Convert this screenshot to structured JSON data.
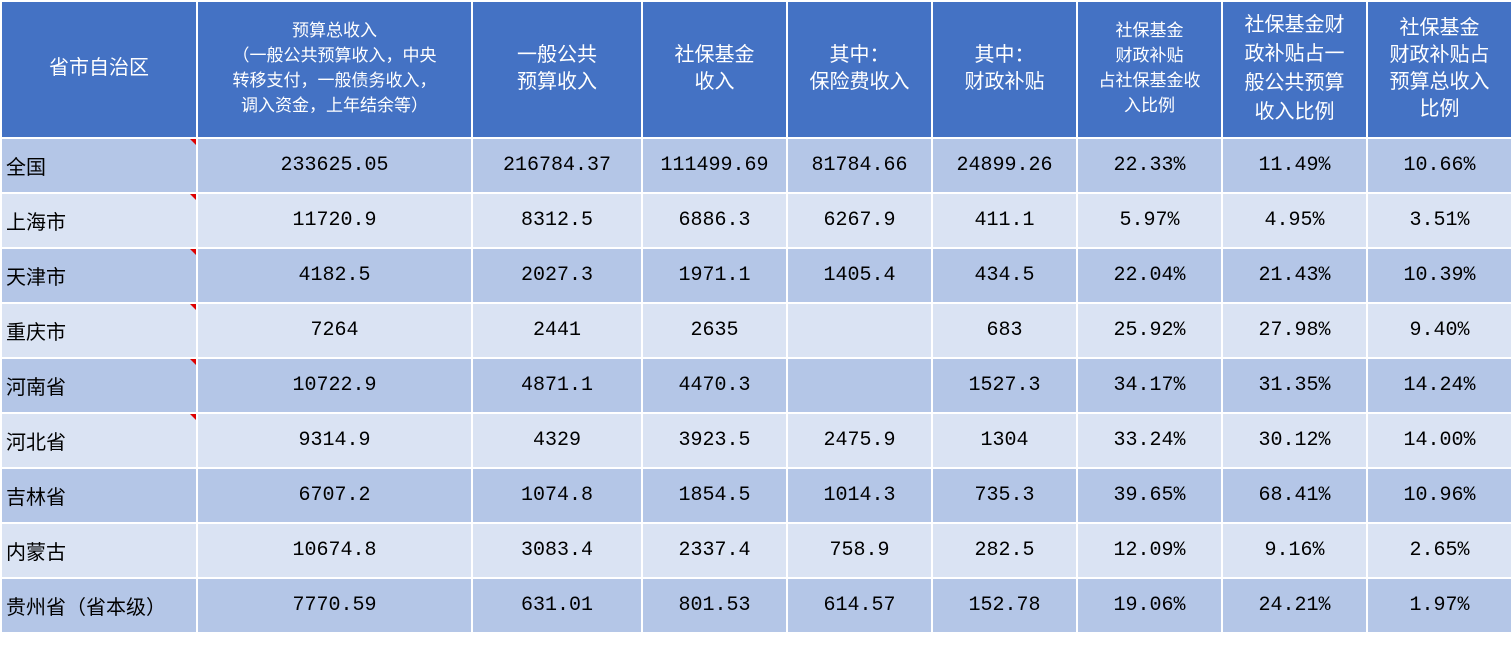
{
  "header": {
    "columns": [
      [
        "省市自治区"
      ],
      [
        "预算总收入",
        "（一般公共预算收入，中央",
        "转移支付，一般债务收入，",
        "调入资金，上年结余等）"
      ],
      [
        "一般公共",
        "预算收入"
      ],
      [
        "社保基金",
        "收入"
      ],
      [
        "其中：",
        "保险费收入"
      ],
      [
        "其中：",
        "财政补贴"
      ],
      [
        "社保基金",
        "财政补贴",
        "占社保基金收",
        "入比例"
      ],
      [
        "社保基金财",
        "政补贴占一",
        "般公共预算",
        "收入比例"
      ],
      [
        "社保基金",
        "财政补贴占",
        "预算总收入",
        "比例"
      ]
    ]
  },
  "table": {
    "rows": [
      [
        "全国",
        "233625.05",
        "216784.37",
        "111499.69",
        "81784.66",
        "24899.26",
        "22.33%",
        "11.49%",
        "10.66%"
      ],
      [
        "上海市",
        "11720.9",
        "8312.5",
        "6886.3",
        "6267.9",
        "411.1",
        "5.97%",
        "4.95%",
        "3.51%"
      ],
      [
        "天津市",
        "4182.5",
        "2027.3",
        "1971.1",
        "1405.4",
        "434.5",
        "22.04%",
        "21.43%",
        "10.39%"
      ],
      [
        "重庆市",
        "7264",
        "2441",
        "2635",
        null,
        "683",
        "25.92%",
        "27.98%",
        "9.40%"
      ],
      [
        "河南省",
        "10722.9",
        "4871.1",
        "4470.3",
        null,
        "1527.3",
        "34.17%",
        "31.35%",
        "14.24%"
      ],
      [
        "河北省",
        "9314.9",
        "4329",
        "3923.5",
        "2475.9",
        "1304",
        "33.24%",
        "30.12%",
        "14.00%"
      ],
      [
        "吉林省",
        "6707.2",
        "1074.8",
        "1854.5",
        "1014.3",
        "735.3",
        "39.65%",
        "68.41%",
        "10.96%"
      ],
      [
        "内蒙古",
        "10674.8",
        "3083.4",
        "2337.4",
        "758.9",
        "282.5",
        "12.09%",
        "9.16%",
        "2.65%"
      ],
      [
        "贵州省（省本级）",
        "7770.59",
        "631.01",
        "801.53",
        "614.57",
        "152.78",
        "19.06%",
        "24.21%",
        "1.97%"
      ]
    ]
  }
}
